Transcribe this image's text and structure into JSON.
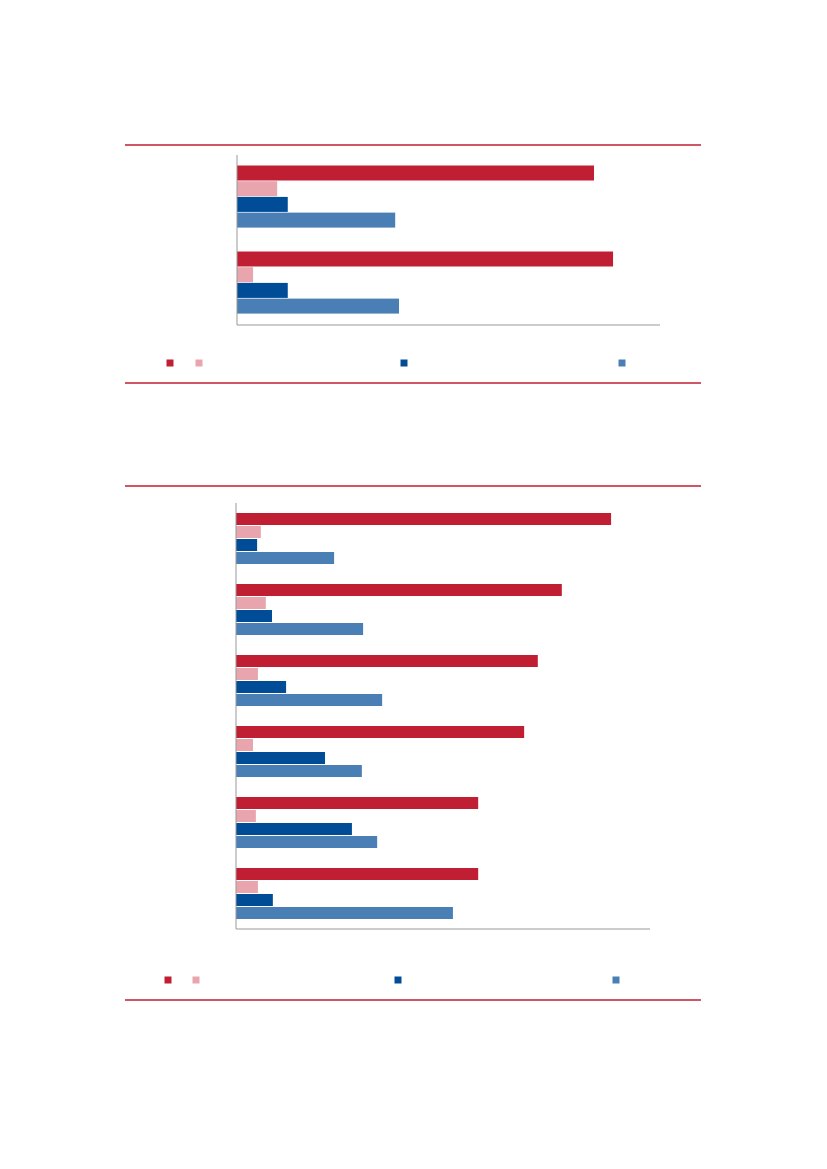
{
  "chart_data": [
    {
      "type": "bar",
      "orientation": "horizontal",
      "categories": [
        null,
        null
      ],
      "xlim": [
        0,
        100
      ],
      "series": [
        {
          "color": "#c01f33",
          "values": [
            84.4,
            88.9
          ]
        },
        {
          "color": "#e8a5ad",
          "values": [
            9.5,
            3.8
          ]
        },
        {
          "color": "#004c97",
          "values": [
            12,
            12
          ]
        },
        {
          "color": "#4a7fb5",
          "values": [
            37.4,
            38.3
          ]
        }
      ]
    },
    {
      "type": "bar",
      "orientation": "horizontal",
      "categories": [
        null,
        null,
        null,
        null,
        null,
        null
      ],
      "xlim": [
        0,
        100
      ],
      "series": [
        {
          "color": "#c01f33",
          "values": [
            90.6,
            78.7,
            72.9,
            69.6,
            58.5,
            58.5
          ]
        },
        {
          "color": "#e8a5ad",
          "values": [
            6.0,
            7.2,
            5.3,
            4.1,
            4.8,
            5.3
          ]
        },
        {
          "color": "#004c97",
          "values": [
            5.1,
            8.7,
            12.1,
            21.5,
            28.0,
            8.9
          ]
        },
        {
          "color": "#4a7fb5",
          "values": [
            23.7,
            30.7,
            35.3,
            30.4,
            34.1,
            52.4
          ]
        }
      ]
    }
  ]
}
